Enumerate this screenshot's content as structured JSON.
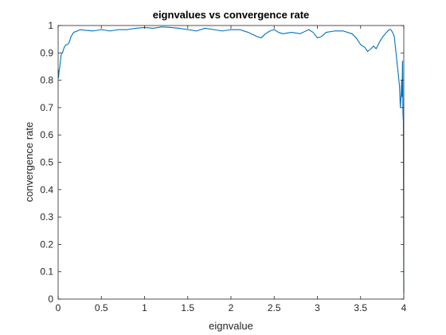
{
  "chart_data": {
    "type": "line",
    "title": "eignvalues  vs  convergence rate",
    "xlabel": "eignvalue",
    "ylabel": "convergence rate",
    "xlim": [
      0,
      4
    ],
    "ylim": [
      0,
      1
    ],
    "xticks": [
      "0",
      "0.5",
      "1",
      "1.5",
      "2",
      "2.5",
      "3",
      "3.5",
      "4"
    ],
    "yticks": [
      "0",
      "0.1",
      "0.2",
      "0.3",
      "0.4",
      "0.5",
      "0.6",
      "0.7",
      "0.8",
      "0.9",
      "1"
    ],
    "grid": false,
    "line_color": "#0072BD",
    "series": [
      {
        "x": [
          0,
          0.005,
          0.01,
          0.02,
          0.03,
          0.04,
          0.05,
          0.07,
          0.09,
          0.11,
          0.13,
          0.15,
          0.18,
          0.22,
          0.26,
          0.3,
          0.4,
          0.5,
          0.6,
          0.7,
          0.8,
          0.9,
          1.0,
          1.1,
          1.2,
          1.3,
          1.4,
          1.5,
          1.6,
          1.7,
          1.8,
          1.9,
          2.0,
          2.1,
          2.2,
          2.3,
          2.35,
          2.4,
          2.45,
          2.5,
          2.55,
          2.6,
          2.7,
          2.8,
          2.9,
          2.95,
          3.0,
          3.05,
          3.1,
          3.2,
          3.3,
          3.4,
          3.45,
          3.5,
          3.55,
          3.58,
          3.6,
          3.62,
          3.65,
          3.68,
          3.72,
          3.76,
          3.8,
          3.83,
          3.85,
          3.87,
          3.89,
          3.91,
          3.93,
          3.95,
          3.96,
          3.97,
          3.975,
          3.98,
          3.985,
          3.99,
          3.995,
          4.0
        ],
        "values": [
          0.84,
          0.81,
          0.83,
          0.85,
          0.88,
          0.9,
          0.9,
          0.92,
          0.93,
          0.93,
          0.94,
          0.96,
          0.975,
          0.98,
          0.985,
          0.983,
          0.98,
          0.985,
          0.98,
          0.985,
          0.985,
          0.99,
          0.993,
          0.99,
          0.995,
          0.993,
          0.99,
          0.985,
          0.98,
          0.99,
          0.985,
          0.98,
          0.985,
          0.985,
          0.975,
          0.96,
          0.955,
          0.97,
          0.98,
          0.985,
          0.975,
          0.97,
          0.975,
          0.97,
          0.985,
          0.975,
          0.955,
          0.96,
          0.975,
          0.98,
          0.98,
          0.97,
          0.955,
          0.93,
          0.92,
          0.905,
          0.91,
          0.915,
          0.925,
          0.915,
          0.94,
          0.96,
          0.975,
          0.985,
          0.985,
          0.975,
          0.96,
          0.9,
          0.84,
          0.78,
          0.7,
          0.75,
          0.8,
          0.74,
          0.87,
          0.68,
          0.65,
          0.02
        ]
      }
    ]
  }
}
